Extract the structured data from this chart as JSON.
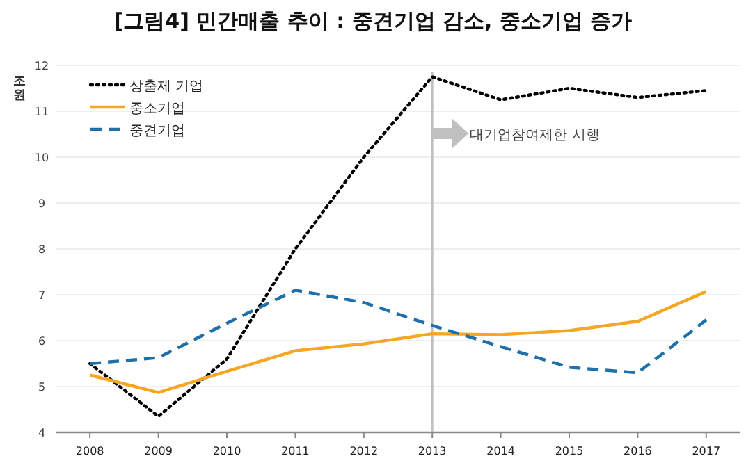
{
  "chart_data": {
    "type": "line",
    "title": "[그림4] 민간매출 추이 : 중견기업 감소, 중소기업 증가",
    "ylabel": "조원",
    "x": [
      2008,
      2009,
      2010,
      2011,
      2012,
      2013,
      2014,
      2015,
      2016,
      2017
    ],
    "xlim": [
      2007.5,
      2017.5
    ],
    "xticks": [
      2008,
      2009,
      2010,
      2011,
      2012,
      2013,
      2014,
      2015,
      2016,
      2017
    ],
    "ylim": [
      4,
      12
    ],
    "yticks": [
      4,
      5,
      6,
      7,
      8,
      9,
      10,
      11,
      12
    ],
    "grid": "y",
    "legend": "top left",
    "series": [
      {
        "name": "상출제 기업",
        "color": "#000000",
        "line_style": "dotted",
        "values": [
          5.5,
          4.35,
          5.6,
          8.0,
          10.0,
          11.75,
          11.25,
          11.5,
          11.3,
          11.45
        ]
      },
      {
        "name": "중소기업",
        "color": "#f5a623",
        "line_style": "solid",
        "values": [
          5.25,
          4.87,
          5.33,
          5.78,
          5.93,
          6.15,
          6.13,
          6.22,
          6.42,
          7.07
        ]
      },
      {
        "name": "중견기업",
        "color": "#1f6fa8",
        "line_style": "dashed",
        "values": [
          5.5,
          5.63,
          6.38,
          7.1,
          6.83,
          6.33,
          5.87,
          5.42,
          5.3,
          6.45
        ]
      }
    ],
    "ref_lines": [
      {
        "axis": "x",
        "value": 2013,
        "label": "대기업참여제한 시행",
        "color": "#c0c0c0"
      }
    ]
  }
}
